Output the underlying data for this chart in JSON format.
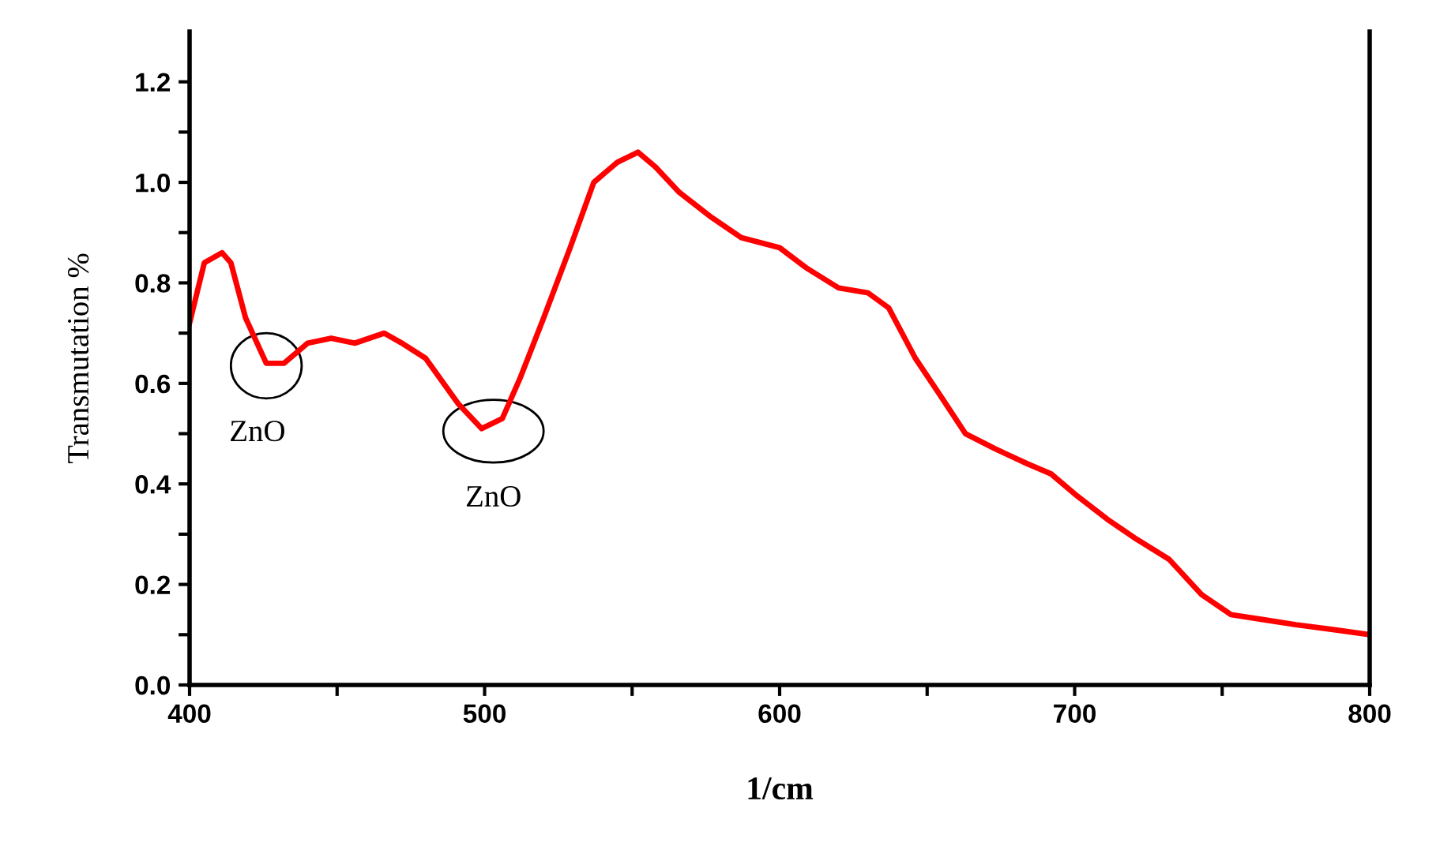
{
  "chart_data": {
    "type": "line",
    "xlabel": "1/cm",
    "ylabel": "Transmutation %",
    "x": [
      400,
      405,
      411,
      414,
      419,
      426,
      432,
      440,
      448,
      456,
      466,
      472,
      480,
      491,
      499,
      506,
      512,
      520,
      529,
      537,
      545,
      552,
      558,
      566,
      577,
      587,
      600,
      609,
      620,
      630,
      637,
      646,
      654,
      663,
      673,
      684,
      692,
      700,
      711,
      721,
      732,
      743,
      753,
      764,
      775,
      788,
      800
    ],
    "series": [
      {
        "color": "#ff0000",
        "values": [
          0.72,
          0.84,
          0.86,
          0.84,
          0.73,
          0.64,
          0.64,
          0.68,
          0.69,
          0.68,
          0.7,
          0.68,
          0.65,
          0.56,
          0.51,
          0.53,
          0.61,
          0.73,
          0.87,
          1.0,
          1.04,
          1.06,
          1.03,
          0.98,
          0.93,
          0.89,
          0.87,
          0.83,
          0.79,
          0.78,
          0.75,
          0.65,
          0.58,
          0.5,
          0.47,
          0.44,
          0.42,
          0.38,
          0.33,
          0.29,
          0.25,
          0.18,
          0.14,
          0.13,
          0.12,
          0.11,
          0.1
        ]
      }
    ],
    "xlim": [
      400,
      800
    ],
    "xticks": [
      400,
      {
        "value": 450,
        "label": null
      },
      500,
      {
        "value": 550,
        "label": null
      },
      600,
      {
        "value": 650,
        "label": null
      },
      700,
      {
        "value": 750,
        "label": null
      },
      800
    ],
    "ylim": [
      0,
      1.3
    ],
    "yticks": [
      "0.0",
      {
        "value": 0.1,
        "label": null
      },
      {
        "value": 0.2,
        "label": "0.2"
      },
      {
        "value": 0.3,
        "label": null
      },
      {
        "value": 0.4,
        "label": "0.4"
      },
      {
        "value": 0.5,
        "label": null
      },
      {
        "value": 0.6,
        "label": "0.6"
      },
      {
        "value": 0.7,
        "label": null
      },
      {
        "value": 0.8,
        "label": "0.8"
      },
      {
        "value": 0.9,
        "label": null
      },
      {
        "value": 1.0,
        "label": "1.0"
      },
      {
        "value": 1.1,
        "label": null
      },
      {
        "value": 1.2,
        "label": "1.2"
      }
    ],
    "annotations": [
      {
        "text": "ZnO",
        "x": 430,
        "y": 0.64
      },
      {
        "text": "ZnO",
        "x": 503,
        "y": 0.51
      }
    ],
    "grid": false,
    "marker": "none",
    "line_style": "solid"
  }
}
